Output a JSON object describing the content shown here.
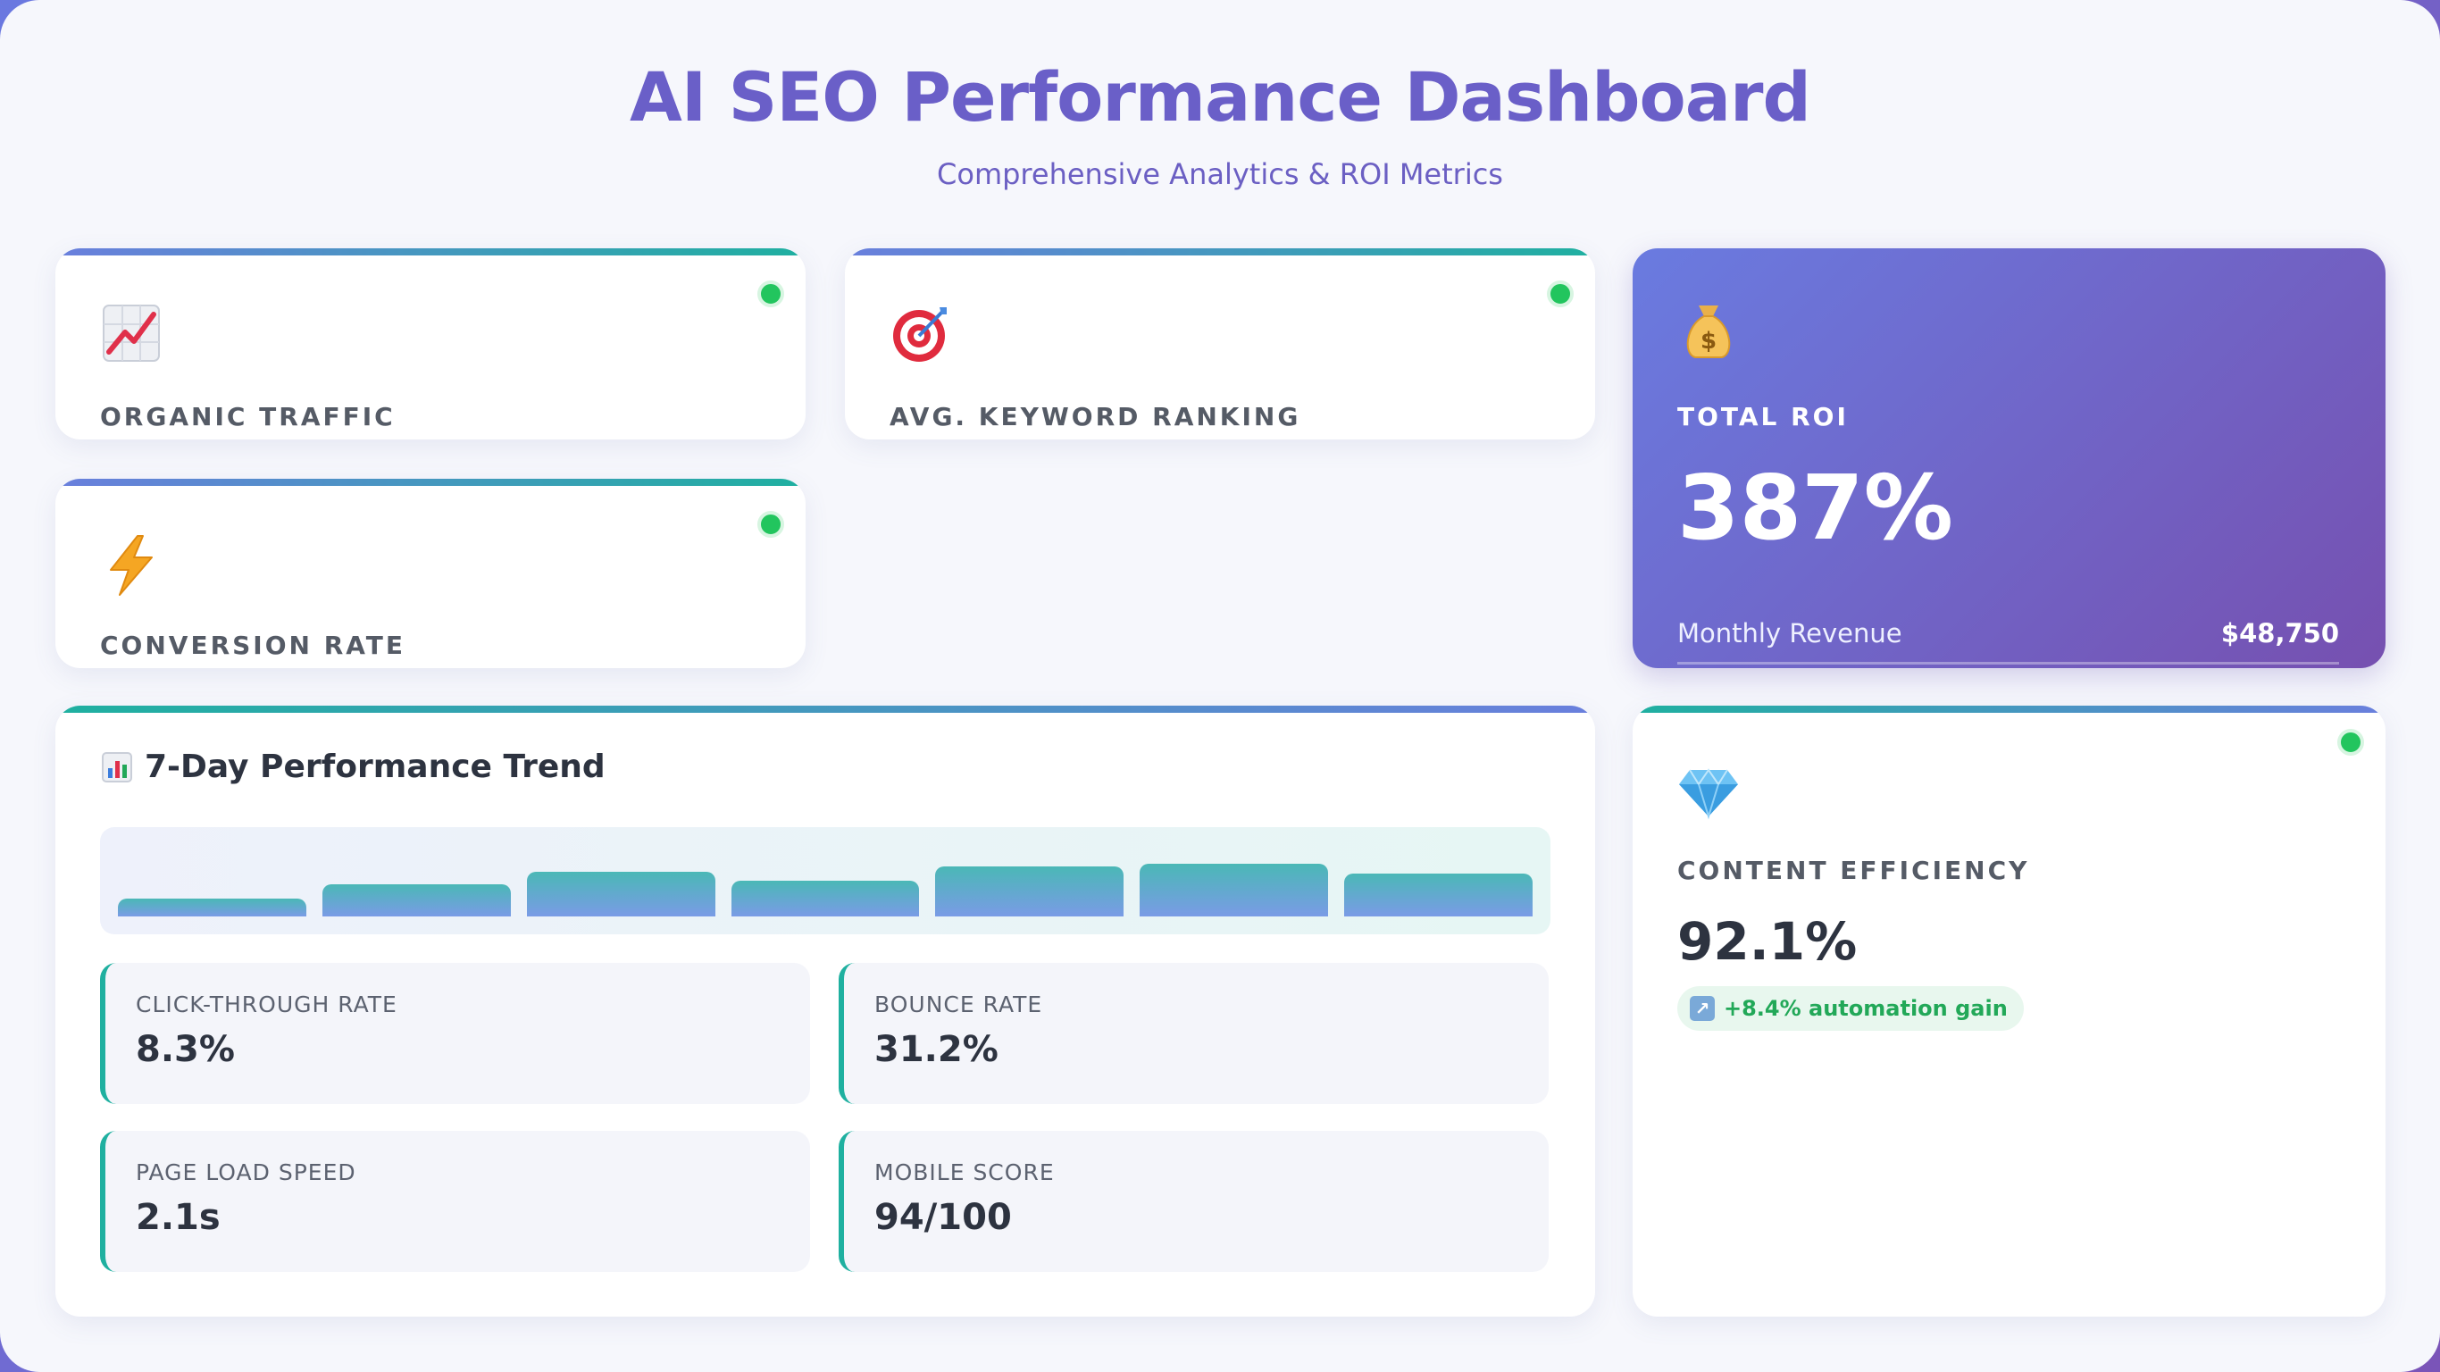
{
  "header": {
    "title": "AI SEO Performance Dashboard",
    "subtitle": "Comprehensive Analytics & ROI Metrics"
  },
  "metrics": [
    {
      "label": "ORGANIC TRAFFIC",
      "icon": "chart-increasing-icon",
      "status": "online"
    },
    {
      "label": "AVG. KEYWORD RANKING",
      "icon": "target-icon",
      "status": "online"
    },
    {
      "label": "CONVERSION RATE",
      "icon": "lightning-icon",
      "status": "online"
    }
  ],
  "roi": {
    "icon": "money-bag-icon",
    "label": "TOTAL ROI",
    "value": "387%",
    "footer_label": "Monthly Revenue",
    "footer_value": "$48,750"
  },
  "trend": {
    "icon": "bar-chart-icon",
    "title": "7-Day Performance Trend",
    "bars": [
      0.25,
      0.45,
      0.62,
      0.5,
      0.7,
      0.74,
      0.6
    ],
    "stats": [
      {
        "label": "CLICK-THROUGH RATE",
        "value": "8.3%"
      },
      {
        "label": "BOUNCE RATE",
        "value": "31.2%"
      },
      {
        "label": "PAGE LOAD SPEED",
        "value": "2.1s"
      },
      {
        "label": "MOBILE SCORE",
        "value": "94/100"
      }
    ]
  },
  "efficiency": {
    "icon": "gem-icon",
    "label": "CONTENT EFFICIENCY",
    "value": "92.1%",
    "badge": "+8.4% automation gain",
    "status": "online"
  },
  "colors": {
    "accent": "#6a5fc8",
    "teal": "#1fb0a0",
    "status_online": "#22c55e",
    "roi_gradient_start": "#6a7be0",
    "roi_gradient_end": "#7650b0"
  }
}
